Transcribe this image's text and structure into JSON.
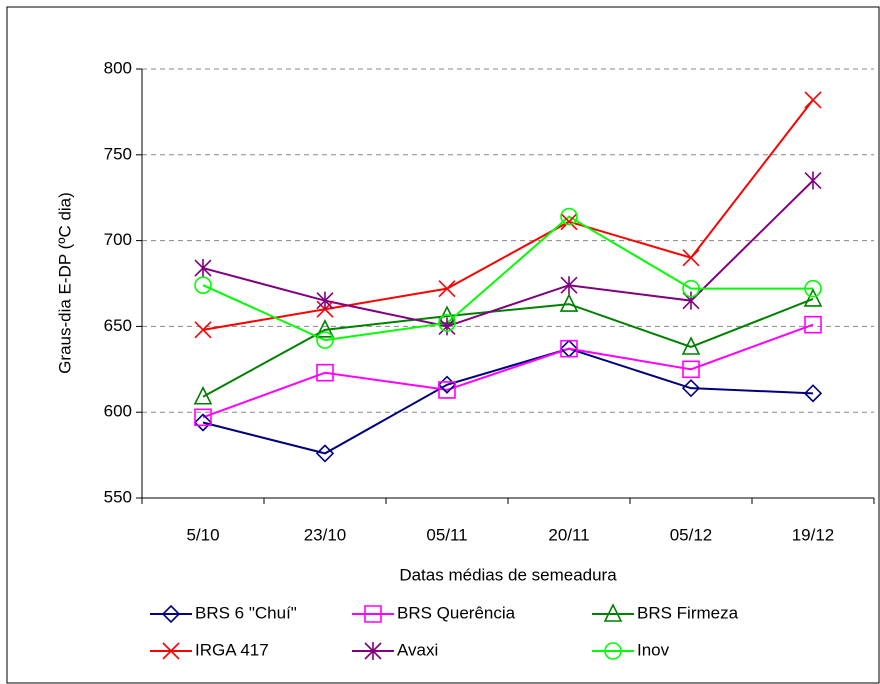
{
  "chart_data": {
    "type": "line",
    "y_label": "Graus-dia E-DP (ºC dia)",
    "x_label": "Datas médias de semeadura",
    "categories": [
      "5/10",
      "23/10",
      "05/11",
      "20/11",
      "05/12",
      "19/12"
    ],
    "series": [
      {
        "name": "BRS 6 \"Chuí\"",
        "color": "#000080",
        "marker": "diamond",
        "values": [
          594,
          576,
          616,
          637,
          614,
          611
        ]
      },
      {
        "name": "BRS Querência",
        "color": "#ff00ff",
        "marker": "square",
        "values": [
          597,
          623,
          613,
          637,
          625,
          651
        ]
      },
      {
        "name": "BRS Firmeza",
        "color": "#008000",
        "marker": "triangle",
        "values": [
          609,
          648,
          656,
          663,
          638,
          666
        ]
      },
      {
        "name": "IRGA 417",
        "color": "#ff0000",
        "marker": "x",
        "values": [
          648,
          660,
          672,
          711,
          690,
          782
        ]
      },
      {
        "name": "Avaxi",
        "color": "#800080",
        "marker": "star",
        "values": [
          684,
          665,
          650,
          674,
          665,
          735
        ]
      },
      {
        "name": "Inov",
        "color": "#00ff00",
        "marker": "circle",
        "values": [
          674,
          642,
          652,
          714,
          672,
          672
        ]
      }
    ],
    "ylim": [
      550,
      800
    ],
    "yticks": [
      550,
      600,
      650,
      700,
      750,
      800
    ],
    "grid": true,
    "legend": "bottom"
  }
}
